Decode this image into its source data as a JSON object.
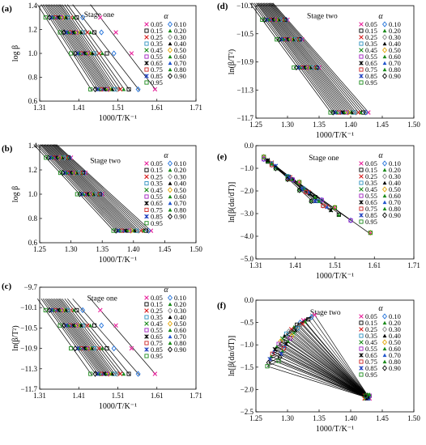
{
  "chart_data": [
    {
      "type": "scatter",
      "panel": "(a)",
      "stage": "Stage one",
      "xlabel": "1000/T/K⁻¹",
      "ylabel": "log β",
      "xlim": [
        1.31,
        1.71
      ],
      "ylim": [
        0.6,
        1.4
      ],
      "xticks": [
        "1.31",
        "1.41",
        "1.51",
        "1.61",
        "1.71"
      ],
      "yticks": [
        "0.6",
        "0.8",
        "1.0",
        "1.2",
        "1.4"
      ],
      "levels": [
        1.301,
        1.176,
        1.0,
        0.699
      ],
      "alpha_values": [
        0.05,
        0.1,
        0.15,
        0.2,
        0.25,
        0.3,
        0.35,
        0.4,
        0.45,
        0.5,
        0.55,
        0.6,
        0.65,
        0.7,
        0.75,
        0.8,
        0.85,
        0.9,
        0.95
      ],
      "x_by_level": [
        [
          1.465,
          1.42,
          1.405,
          1.397,
          1.39,
          1.385,
          1.381,
          1.377,
          1.373,
          1.369,
          1.365,
          1.361,
          1.357,
          1.353,
          1.349,
          1.345,
          1.34,
          1.335,
          1.325
        ],
        [
          1.505,
          1.468,
          1.45,
          1.44,
          1.432,
          1.425,
          1.42,
          1.416,
          1.411,
          1.407,
          1.403,
          1.399,
          1.395,
          1.391,
          1.387,
          1.383,
          1.378,
          1.372,
          1.362
        ],
        [
          1.545,
          1.5,
          1.482,
          1.47,
          1.462,
          1.455,
          1.449,
          1.444,
          1.44,
          1.436,
          1.432,
          1.428,
          1.424,
          1.42,
          1.416,
          1.412,
          1.407,
          1.401,
          1.39
        ],
        [
          1.605,
          1.562,
          1.538,
          1.525,
          1.516,
          1.508,
          1.501,
          1.496,
          1.491,
          1.487,
          1.483,
          1.479,
          1.475,
          1.471,
          1.467,
          1.463,
          1.458,
          1.452,
          1.44
        ]
      ],
      "legend_title": "α"
    },
    {
      "type": "scatter",
      "panel": "(b)",
      "stage": "Stage two",
      "xlabel": "1000/T/K⁻¹",
      "ylabel": "log β",
      "xlim": [
        1.25,
        1.5
      ],
      "ylim": [
        0.6,
        1.4
      ],
      "xticks": [
        "1.25",
        "1.30",
        "1.35",
        "1.40",
        "1.45",
        "1.50"
      ],
      "yticks": [
        "0.6",
        "0.8",
        "1.0",
        "1.2",
        "1.4"
      ],
      "levels": [
        1.301,
        1.176,
        1.0,
        0.699
      ],
      "alpha_values": [
        0.05,
        0.1,
        0.15,
        0.2,
        0.25,
        0.3,
        0.35,
        0.4,
        0.45,
        0.5,
        0.55,
        0.6,
        0.65,
        0.7,
        0.75,
        0.8,
        0.85,
        0.9,
        0.95
      ],
      "x_by_level": [
        [
          1.3,
          1.298,
          1.296,
          1.294,
          1.292,
          1.29,
          1.288,
          1.286,
          1.284,
          1.282,
          1.28,
          1.278,
          1.276,
          1.274,
          1.272,
          1.27,
          1.267,
          1.264,
          1.26
        ],
        [
          1.323,
          1.321,
          1.319,
          1.317,
          1.315,
          1.313,
          1.311,
          1.309,
          1.307,
          1.305,
          1.303,
          1.301,
          1.299,
          1.297,
          1.295,
          1.293,
          1.29,
          1.287,
          1.283
        ],
        [
          1.35,
          1.348,
          1.346,
          1.344,
          1.342,
          1.34,
          1.338,
          1.336,
          1.334,
          1.332,
          1.33,
          1.328,
          1.326,
          1.324,
          1.322,
          1.32,
          1.317,
          1.314,
          1.31
        ],
        [
          1.428,
          1.424,
          1.42,
          1.416,
          1.412,
          1.408,
          1.405,
          1.402,
          1.399,
          1.396,
          1.393,
          1.39,
          1.387,
          1.384,
          1.381,
          1.378,
          1.375,
          1.372,
          1.368
        ]
      ],
      "legend_title": "α"
    },
    {
      "type": "scatter",
      "panel": "(c)",
      "stage": "Stage one",
      "xlabel": "1000/T/K⁻¹",
      "ylabel": "ln(β/T²)",
      "xlim": [
        1.31,
        1.71
      ],
      "ylim": [
        -11.7,
        -9.7
      ],
      "xticks": [
        "1.31",
        "1.41",
        "1.51",
        "1.61",
        "1.71"
      ],
      "yticks": [
        "−9.7",
        "−10.1",
        "−10.5",
        "−10.9",
        "−11.3",
        "−11.7"
      ],
      "levels": [
        -10.15,
        -10.45,
        -10.9,
        -11.4
      ],
      "alpha_values": [
        0.05,
        0.1,
        0.15,
        0.2,
        0.25,
        0.3,
        0.35,
        0.4,
        0.45,
        0.5,
        0.55,
        0.6,
        0.65,
        0.7,
        0.75,
        0.8,
        0.85,
        0.9,
        0.95
      ],
      "x_by_level": [
        [
          1.465,
          1.42,
          1.405,
          1.397,
          1.39,
          1.385,
          1.381,
          1.377,
          1.373,
          1.369,
          1.365,
          1.361,
          1.357,
          1.353,
          1.349,
          1.345,
          1.34,
          1.335,
          1.325
        ],
        [
          1.505,
          1.468,
          1.45,
          1.44,
          1.432,
          1.425,
          1.42,
          1.416,
          1.411,
          1.407,
          1.403,
          1.399,
          1.395,
          1.391,
          1.387,
          1.383,
          1.378,
          1.372,
          1.362
        ],
        [
          1.545,
          1.5,
          1.482,
          1.47,
          1.462,
          1.455,
          1.449,
          1.444,
          1.44,
          1.436,
          1.432,
          1.428,
          1.424,
          1.42,
          1.416,
          1.412,
          1.407,
          1.401,
          1.39
        ],
        [
          1.605,
          1.562,
          1.538,
          1.525,
          1.516,
          1.508,
          1.501,
          1.496,
          1.491,
          1.487,
          1.483,
          1.479,
          1.475,
          1.471,
          1.467,
          1.463,
          1.458,
          1.452,
          1.44
        ]
      ],
      "legend_title": "α"
    },
    {
      "type": "scatter",
      "panel": "(d)",
      "stage": "Stage two",
      "xlabel": "1000/T/K⁻¹",
      "ylabel": "ln(β/T²)",
      "xlim": [
        1.25,
        1.5
      ],
      "ylim": [
        -11.7,
        -10.1
      ],
      "xticks": [
        "1.25",
        "1.30",
        "1.35",
        "1.40",
        "1.45",
        "1.50"
      ],
      "yticks": [
        "−10.1",
        "−10.5",
        "−10.9",
        "−11.3",
        "−11.7"
      ],
      "levels": [
        -10.3,
        -10.58,
        -10.98,
        -11.62
      ],
      "alpha_values": [
        0.05,
        0.1,
        0.15,
        0.2,
        0.25,
        0.3,
        0.35,
        0.4,
        0.45,
        0.5,
        0.55,
        0.6,
        0.65,
        0.7,
        0.75,
        0.8,
        0.85,
        0.9,
        0.95
      ],
      "x_by_level": [
        [
          1.3,
          1.298,
          1.296,
          1.294,
          1.292,
          1.29,
          1.288,
          1.286,
          1.284,
          1.282,
          1.28,
          1.278,
          1.276,
          1.274,
          1.272,
          1.27,
          1.267,
          1.264,
          1.26
        ],
        [
          1.323,
          1.321,
          1.319,
          1.317,
          1.315,
          1.313,
          1.311,
          1.309,
          1.307,
          1.305,
          1.303,
          1.301,
          1.299,
          1.297,
          1.295,
          1.293,
          1.29,
          1.287,
          1.283
        ],
        [
          1.35,
          1.348,
          1.346,
          1.344,
          1.342,
          1.34,
          1.338,
          1.336,
          1.334,
          1.332,
          1.33,
          1.328,
          1.326,
          1.324,
          1.322,
          1.32,
          1.317,
          1.314,
          1.31
        ],
        [
          1.428,
          1.424,
          1.42,
          1.416,
          1.412,
          1.408,
          1.405,
          1.402,
          1.399,
          1.396,
          1.393,
          1.39,
          1.387,
          1.384,
          1.381,
          1.378,
          1.375,
          1.372,
          1.368
        ]
      ],
      "legend_title": "α"
    },
    {
      "type": "scatter",
      "panel": "(e)",
      "stage": "Stage one",
      "xlabel": "1000/T/K⁻¹",
      "ylabel": "ln[β(dα/dT)]",
      "xlim": [
        1.31,
        1.71
      ],
      "ylim": [
        -5.0,
        0.0
      ],
      "xticks": [
        "1.31",
        "1.41",
        "1.51",
        "1.61",
        "1.71"
      ],
      "yticks": [
        "0.0",
        "−1.0",
        "−2.0",
        "−3.0",
        "−4.0",
        "−5.0"
      ],
      "alpha_values": [
        0.05,
        0.1,
        0.15,
        0.2,
        0.25,
        0.3,
        0.35,
        0.4,
        0.45,
        0.5,
        0.55,
        0.6,
        0.65,
        0.7,
        0.75,
        0.8,
        0.85,
        0.9,
        0.95
      ],
      "lines_x": [
        [
          1.33,
          1.6
        ],
        [
          1.33,
          1.55
        ],
        [
          1.34,
          1.52
        ],
        [
          1.34,
          1.5
        ],
        [
          1.35,
          1.49
        ],
        [
          1.35,
          1.48
        ],
        [
          1.35,
          1.47
        ],
        [
          1.36,
          1.46
        ],
        [
          1.36,
          1.45
        ]
      ],
      "lines_y": [
        [
          -0.55,
          -3.9
        ],
        [
          -0.6,
          -3.3
        ],
        [
          -0.65,
          -3.0
        ],
        [
          -0.7,
          -2.9
        ],
        [
          -0.75,
          -2.7
        ],
        [
          -0.8,
          -2.6
        ],
        [
          -0.85,
          -2.5
        ],
        [
          -0.9,
          -2.45
        ],
        [
          -0.95,
          -2.4
        ]
      ],
      "legend_title": "α"
    },
    {
      "type": "scatter",
      "panel": "(f)",
      "stage": "Stage two",
      "xlabel": "1000/T/K⁻¹",
      "ylabel": "ln[β(dα/dT)]",
      "xlim": [
        1.25,
        1.5
      ],
      "ylim": [
        -2.5,
        0.0
      ],
      "xticks": [
        "1.25",
        "1.30",
        "1.35",
        "1.40",
        "1.45",
        "1.50"
      ],
      "yticks": [
        "0.0",
        "−0.5",
        "−1.0",
        "−1.5",
        "−2.0",
        "−2.5"
      ],
      "alpha_values": [
        0.05,
        0.1,
        0.15,
        0.2,
        0.25,
        0.3,
        0.35,
        0.4,
        0.45,
        0.5,
        0.55,
        0.6,
        0.65,
        0.7,
        0.75,
        0.8,
        0.85,
        0.9,
        0.95
      ],
      "fan_tip": [
        1.43,
        -2.2
      ],
      "fan_starts": [
        [
          1.325,
          -0.45
        ],
        [
          1.32,
          -0.5
        ],
        [
          1.315,
          -0.55
        ],
        [
          1.31,
          -0.6
        ],
        [
          1.306,
          -0.65
        ],
        [
          1.302,
          -0.7
        ],
        [
          1.298,
          -0.75
        ],
        [
          1.295,
          -0.8
        ],
        [
          1.292,
          -0.86
        ],
        [
          1.289,
          -0.92
        ],
        [
          1.286,
          -0.98
        ],
        [
          1.283,
          -1.04
        ],
        [
          1.28,
          -1.1
        ],
        [
          1.278,
          -1.15
        ],
        [
          1.276,
          -1.2
        ],
        [
          1.274,
          -1.26
        ],
        [
          1.272,
          -1.32
        ],
        [
          1.27,
          -1.4
        ],
        [
          1.268,
          -1.48
        ]
      ],
      "legend_title": "α"
    }
  ],
  "legend": {
    "labels": [
      "0.05",
      "0.10",
      "0.15",
      "0.20",
      "0.25",
      "0.30",
      "0.35",
      "0.40",
      "0.45",
      "0.50",
      "0.55",
      "0.60",
      "0.65",
      "0.70",
      "0.75",
      "0.80",
      "0.85",
      "0.90",
      "0.95"
    ],
    "colors": [
      "#e8219b",
      "#1e6fd9",
      "#000000",
      "#1a8a1a",
      "#d81b1b",
      "#888888",
      "#2c8fbf",
      "#000000",
      "#1a8a1a",
      "#e3a400",
      "#a020c0",
      "#1a8a1a",
      "#000000",
      "#2255cc",
      "#cc2222",
      "#1a8a1a",
      "#1e3fbf",
      "#000000",
      "#1a8a1a"
    ],
    "markers": [
      "x",
      "diamond",
      "square",
      "triangle",
      "x",
      "diamond",
      "square",
      "triangle",
      "x",
      "diamond",
      "square",
      "triangle",
      "star",
      "triangle",
      "square",
      "triangle",
      "star",
      "diamond",
      "square"
    ]
  }
}
